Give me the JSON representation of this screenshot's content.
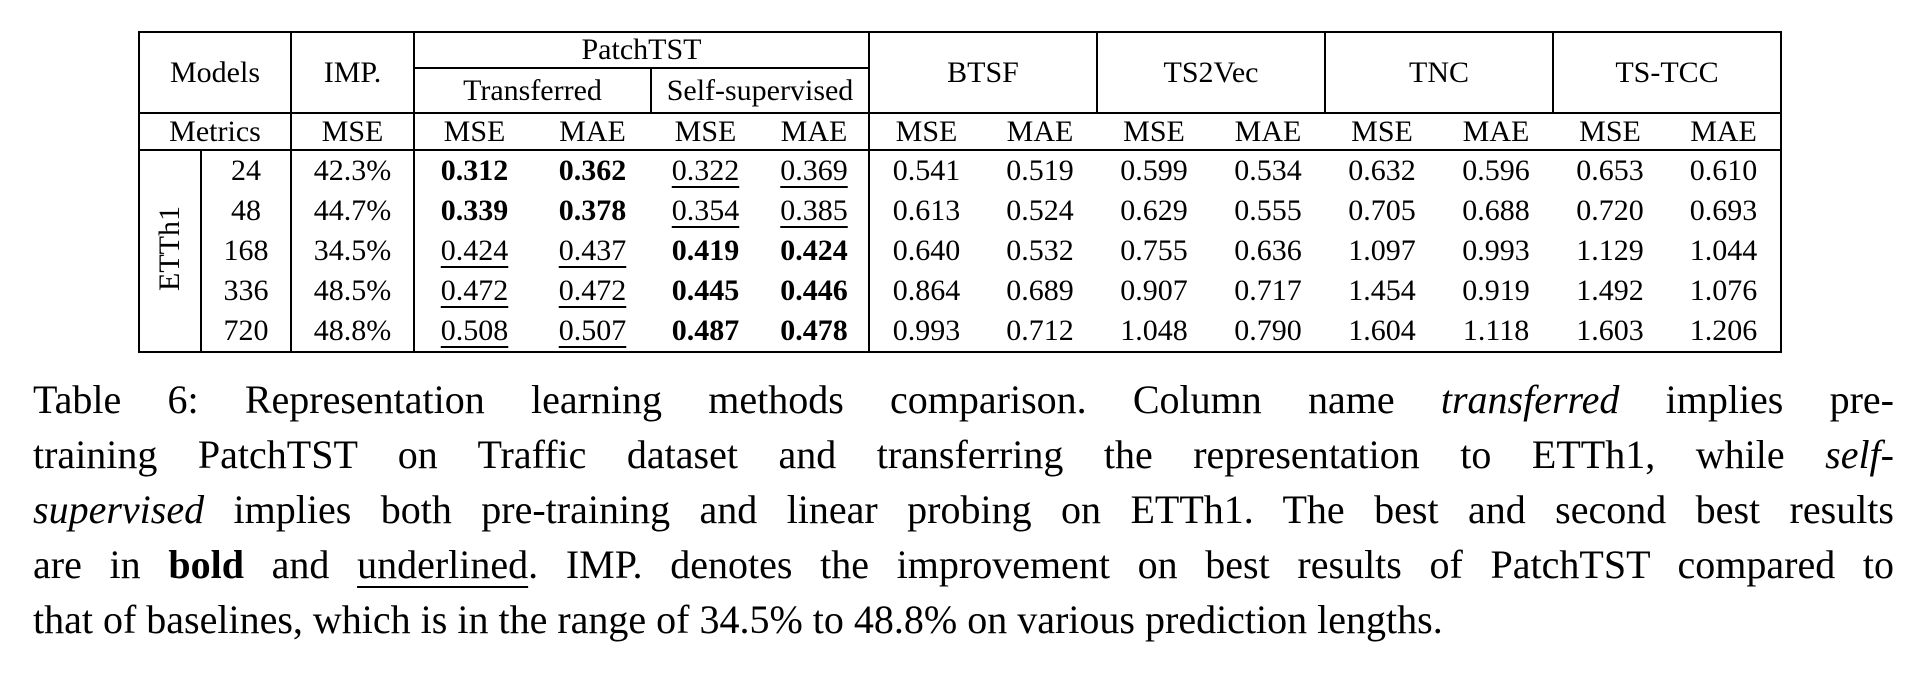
{
  "table": {
    "models_label": "Models",
    "imp_label": "IMP.",
    "metrics_label": "Metrics",
    "dataset": "ETTh1",
    "groups": [
      "PatchTST",
      "BTSF",
      "TS2Vec",
      "TNC",
      "TS-TCC"
    ],
    "subgroups": [
      "Transferred",
      "Self-supervised"
    ],
    "metrics_row": [
      "MSE",
      "MSE",
      "MAE",
      "MSE",
      "MAE",
      "MSE",
      "MAE",
      "MSE",
      "MAE",
      "MSE",
      "MAE",
      "MSE",
      "MAE"
    ],
    "rows": [
      {
        "pred_len": "24",
        "imp": "42.3%",
        "values": [
          {
            "v": "0.312",
            "s": "b"
          },
          {
            "v": "0.362",
            "s": "b"
          },
          {
            "v": "0.322",
            "s": "u"
          },
          {
            "v": "0.369",
            "s": "u"
          },
          {
            "v": "0.541"
          },
          {
            "v": "0.519"
          },
          {
            "v": "0.599"
          },
          {
            "v": "0.534"
          },
          {
            "v": "0.632"
          },
          {
            "v": "0.596"
          },
          {
            "v": "0.653"
          },
          {
            "v": "0.610"
          }
        ]
      },
      {
        "pred_len": "48",
        "imp": "44.7%",
        "values": [
          {
            "v": "0.339",
            "s": "b"
          },
          {
            "v": "0.378",
            "s": "b"
          },
          {
            "v": "0.354",
            "s": "u"
          },
          {
            "v": "0.385",
            "s": "u"
          },
          {
            "v": "0.613"
          },
          {
            "v": "0.524"
          },
          {
            "v": "0.629"
          },
          {
            "v": "0.555"
          },
          {
            "v": "0.705"
          },
          {
            "v": "0.688"
          },
          {
            "v": "0.720"
          },
          {
            "v": "0.693"
          }
        ]
      },
      {
        "pred_len": "168",
        "imp": "34.5%",
        "values": [
          {
            "v": "0.424",
            "s": "u"
          },
          {
            "v": "0.437",
            "s": "u"
          },
          {
            "v": "0.419",
            "s": "b"
          },
          {
            "v": "0.424",
            "s": "b"
          },
          {
            "v": "0.640"
          },
          {
            "v": "0.532"
          },
          {
            "v": "0.755"
          },
          {
            "v": "0.636"
          },
          {
            "v": "1.097"
          },
          {
            "v": "0.993"
          },
          {
            "v": "1.129"
          },
          {
            "v": "1.044"
          }
        ]
      },
      {
        "pred_len": "336",
        "imp": "48.5%",
        "values": [
          {
            "v": "0.472",
            "s": "u"
          },
          {
            "v": "0.472",
            "s": "u"
          },
          {
            "v": "0.445",
            "s": "b"
          },
          {
            "v": "0.446",
            "s": "b"
          },
          {
            "v": "0.864"
          },
          {
            "v": "0.689"
          },
          {
            "v": "0.907"
          },
          {
            "v": "0.717"
          },
          {
            "v": "1.454"
          },
          {
            "v": "0.919"
          },
          {
            "v": "1.492"
          },
          {
            "v": "1.076"
          }
        ]
      },
      {
        "pred_len": "720",
        "imp": "48.8%",
        "values": [
          {
            "v": "0.508",
            "s": "u"
          },
          {
            "v": "0.507",
            "s": "u"
          },
          {
            "v": "0.487",
            "s": "b"
          },
          {
            "v": "0.478",
            "s": "b"
          },
          {
            "v": "0.993"
          },
          {
            "v": "0.712"
          },
          {
            "v": "1.048"
          },
          {
            "v": "0.790"
          },
          {
            "v": "1.604"
          },
          {
            "v": "1.118"
          },
          {
            "v": "1.603"
          },
          {
            "v": "1.206"
          }
        ]
      }
    ]
  },
  "caption": {
    "lines": [
      {
        "last": false,
        "segments": [
          {
            "t": "Table 6:  Representation learning methods comparison.  Column name "
          },
          {
            "t": "transferred",
            "s": "i"
          },
          {
            "t": " implies pre-"
          }
        ]
      },
      {
        "last": false,
        "segments": [
          {
            "t": "training PatchTST on Traffic dataset and transferring the representation to ETTh1, while "
          },
          {
            "t": "self-",
            "s": "i"
          }
        ]
      },
      {
        "last": false,
        "segments": [
          {
            "t": "supervised",
            "s": "i"
          },
          {
            "t": " implies both pre-training and linear probing on ETTh1. The best and second best results"
          }
        ]
      },
      {
        "last": false,
        "segments": [
          {
            "t": "are in "
          },
          {
            "t": "bold",
            "s": "b"
          },
          {
            "t": " and "
          },
          {
            "t": "underlined",
            "s": "u"
          },
          {
            "t": ". IMP. denotes the improvement on best results of PatchTST compared to"
          }
        ]
      },
      {
        "last": true,
        "segments": [
          {
            "t": "that of baselines, which is in the range of 34.5% to 48.8% on various prediction lengths."
          }
        ]
      }
    ]
  }
}
